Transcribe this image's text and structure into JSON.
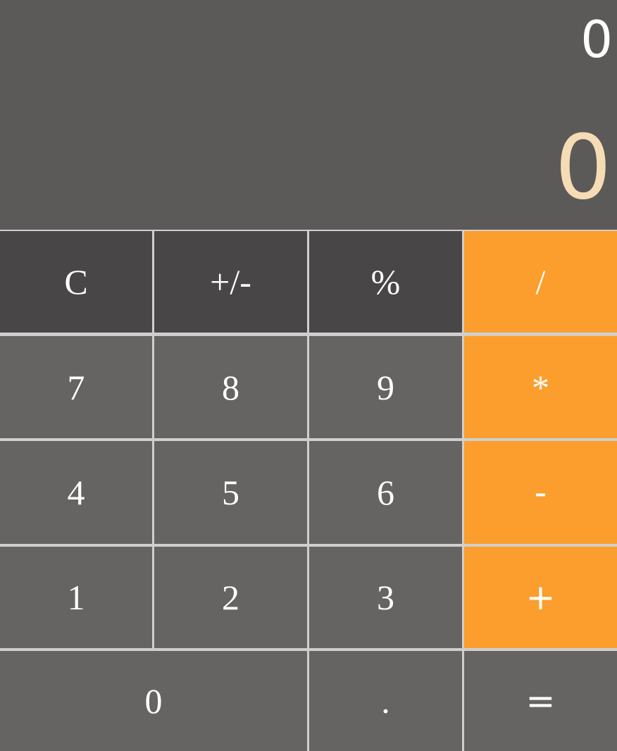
{
  "display": {
    "previous": "0",
    "current": "0"
  },
  "keys": {
    "clear": "C",
    "negate": "+/-",
    "percent": "%",
    "divide": "/",
    "seven": "7",
    "eight": "8",
    "nine": "9",
    "multiply": "*",
    "four": "4",
    "five": "5",
    "six": "6",
    "subtract": "-",
    "one": "1",
    "two": "2",
    "three": "3",
    "add": "+",
    "zero": "0",
    "decimal": ".",
    "equals": "="
  },
  "colors": {
    "display_bg": "#5c5a58",
    "function_key_bg": "#484647",
    "digit_key_bg": "#666462",
    "operator_key_bg": "#fb9e2d",
    "current_value_text": "#f6dcb4",
    "key_text": "#ffffff",
    "grid_lines": "#cfcfcf"
  }
}
